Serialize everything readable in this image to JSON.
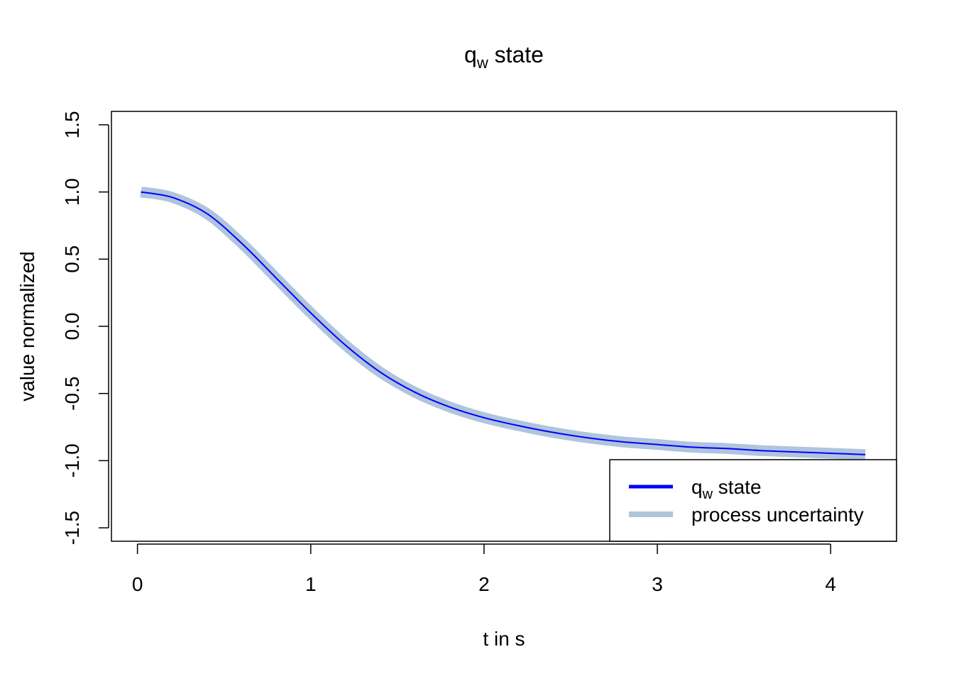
{
  "chart_data": {
    "type": "line",
    "title": {
      "main": "q",
      "subscript": "w",
      "rest": " state"
    },
    "xlabel": "t in s",
    "ylabel": "value normalized",
    "xlim": [
      -0.15,
      4.38
    ],
    "ylim": [
      -1.6,
      1.6
    ],
    "xticks": [
      0,
      1,
      2,
      3,
      4
    ],
    "xtick_labels": [
      "0",
      "1",
      "2",
      "3",
      "4"
    ],
    "yticks": [
      -1.5,
      -1.0,
      -0.5,
      0.0,
      0.5,
      1.0,
      1.5
    ],
    "ytick_labels": [
      "-1.5",
      "-1.0",
      "-0.5",
      "0.0",
      "0.5",
      "1.0",
      "1.5"
    ],
    "grid": false,
    "legend_position": "bottom-right",
    "series": [
      {
        "name": "q_w state",
        "color": "#0000ff",
        "x": [
          0.02,
          0.2,
          0.4,
          0.6,
          0.8,
          1.0,
          1.2,
          1.4,
          1.6,
          1.8,
          2.0,
          2.2,
          2.4,
          2.6,
          2.8,
          3.0,
          3.2,
          3.4,
          3.6,
          3.8,
          4.0,
          4.2
        ],
        "y": [
          1.0,
          0.96,
          0.84,
          0.62,
          0.36,
          0.1,
          -0.14,
          -0.34,
          -0.49,
          -0.6,
          -0.68,
          -0.74,
          -0.79,
          -0.83,
          -0.86,
          -0.88,
          -0.9,
          -0.91,
          -0.925,
          -0.935,
          -0.945,
          -0.955
        ]
      },
      {
        "name": "process uncertainty",
        "color": "#b0c4de",
        "band_half_width": [
          0.04,
          0.04,
          0.04,
          0.04,
          0.04,
          0.04,
          0.04,
          0.04,
          0.04,
          0.04,
          0.04,
          0.04,
          0.04,
          0.04,
          0.04,
          0.04,
          0.04,
          0.04,
          0.04,
          0.04,
          0.04,
          0.04
        ]
      }
    ],
    "legend": [
      {
        "label_main": "q",
        "label_sub": "w",
        "label_rest": " state",
        "color": "#0000ff"
      },
      {
        "label_main": "process uncertainty",
        "label_sub": "",
        "label_rest": "",
        "color": "#b0c4de"
      }
    ]
  }
}
